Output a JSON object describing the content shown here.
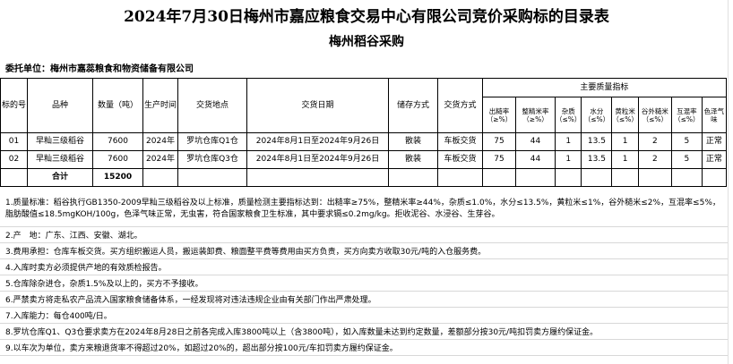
{
  "title": "2024年7月30日梅州市嘉应粮食交易中心有限公司竞价采购标的目录表",
  "subtitle": "梅州稻谷采购",
  "consignor": "委托单位：梅州市嘉蕊粮食和物资储备有限公司",
  "headers": {
    "lot_no": "标的号",
    "variety": "品种",
    "quantity": "数量（吨）",
    "production": "生产时间",
    "location": "交货地点",
    "date": "交货日期",
    "storage": "储存方式",
    "delivery": "交货方式",
    "quality_group": "主要质量指标",
    "quality": [
      "出糙率（≥%）",
      "整精米率（≥%）",
      "杂质（≤%）",
      "水分（≤%）",
      "黄粒米（≤%）",
      "谷外糙米（≤%）",
      "互混率（≤%）",
      "色泽气味"
    ]
  },
  "rows": [
    {
      "lot_no": "01",
      "variety": "早籼三级稻谷",
      "quantity": "7600",
      "production": "2024年",
      "location": "罗坑仓库Q1仓",
      "date": "2024年8月1日至2024年9月26日",
      "storage": "散装",
      "delivery": "车板交货",
      "q": [
        "75",
        "44",
        "1",
        "13.5",
        "1",
        "2",
        "5",
        "正常"
      ]
    },
    {
      "lot_no": "02",
      "variety": "早籼三级稻谷",
      "quantity": "7600",
      "production": "2024年",
      "location": "罗坑仓库Q3仓",
      "date": "2024年8月1日至2024年9月26日",
      "storage": "散装",
      "delivery": "车板交货",
      "q": [
        "75",
        "44",
        "1",
        "13.5",
        "1",
        "2",
        "5",
        "正常"
      ]
    }
  ],
  "total": {
    "label": "合计",
    "quantity": "15200"
  },
  "notes": [
    "1.质量标准：稻谷执行GB1350-2009早籼三级稻谷及以上标准，质量检测主要指标达到：出糙率≥75%，整精米率≥44%，杂质≤1.0%，水分≤13.5%，黄粒米≤1%，谷外糙米≤2%，互混率≤5%，脂肪酸值≤18.5mgKOH/100g，色泽气味正常，无虫害，符合国家粮食卫生标准，其中要求镉≤0.2mg/kg。拒收泥谷、水浸谷、生芽谷。",
    "2.产　地：广东、江西、安徽、湖北。",
    "3.费用承担：仓库车板交货。买方组织搬运人员，搬运装卸费、粮面整平费等费用由买方负责，买方向卖方收取30元/吨的入仓服务费。",
    "4.入库时卖方必须提供产地的有效质检报告。",
    "5.仓库除杂进仓，杂质1.5%及以上的，买方不予接收。",
    "6.严禁卖方将走私农产品流入国家粮食储备体系，一经发现将对违法违规企业由有关部门作出严肃处理。",
    "7.入库能力：每仓400吨/日。",
    "8.罗坑仓库Q1、Q3仓要求卖方在2024年8月28日之前各完成入库3800吨以上（含3800吨），如入库数量未达到约定数量，差额部分按30元/吨扣罚卖方履约保证金。",
    "9.以车次为单位，卖方来粮退货率不得超过20%，如超过20%的，超出部分按100元/车扣罚卖方履约保证金。"
  ]
}
